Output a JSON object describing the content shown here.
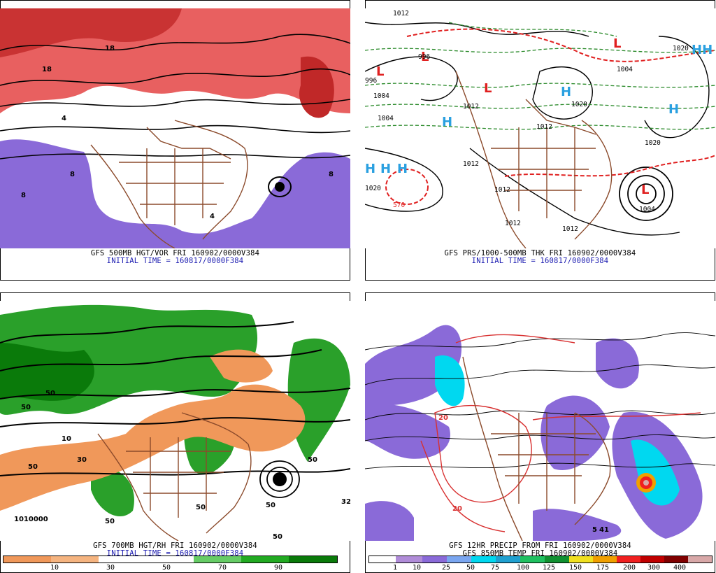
{
  "panels": [
    {
      "id": "p1",
      "caption_line1": "GFS 500MB HGT/VOR FRI 160902/0000V384",
      "caption_line2": "INITIAL TIME = 160817/0000F384"
    },
    {
      "id": "p2",
      "caption_line1": "GFS PRS/1000-500MB THK FRI 160902/0000V384",
      "caption_line2": "INITIAL TIME = 160817/0000F384"
    },
    {
      "id": "p3",
      "caption_line1": "GFS 700MB HGT/RH FRI 160902/0000V384",
      "caption_line2": "INITIAL TIME = 160817/0000F384"
    },
    {
      "id": "p4",
      "caption_line1": "GFS 12HR PRECIP FROM FRI 160902/0000V384",
      "caption_line2": "GFS 850MB TEMP FRI 160902/0000V384"
    }
  ],
  "map_labels": {
    "p1": [
      "4",
      "8",
      "8",
      "18",
      "18",
      "4",
      "8"
    ],
    "p2": [
      "1012",
      "996",
      "996",
      "1004",
      "1004",
      "1012",
      "1012",
      "1020",
      "1020",
      "1020",
      "1012",
      "1012",
      "1012",
      "1004",
      "1020",
      "570",
      "1004",
      "1012",
      "H",
      "H",
      "H",
      "H",
      "H",
      "H",
      "HH",
      "L",
      "L",
      "L",
      "L",
      "L"
    ],
    "p3": [
      "50",
      "50",
      "10",
      "50",
      "50",
      "50",
      "30",
      "1010000",
      "50",
      "50",
      "32",
      "50"
    ],
    "p4": [
      "41",
      "5",
      "20",
      "20"
    ]
  },
  "legend_rh": {
    "colors": [
      "#f0985a",
      "#f5b480",
      "#ffffff",
      "#ffffff",
      "#66cc66",
      "#22aa22",
      "#0a7a0a"
    ],
    "ticks": [
      "10",
      "30",
      "50",
      "70",
      "90"
    ]
  },
  "legend_precip": {
    "colors": [
      "#ffffff",
      "#b08cd8",
      "#8a6ad8",
      "#7aa6f0",
      "#00d8f0",
      "#20a0d0",
      "#20c060",
      "#109030",
      "#f0e020",
      "#f0a000",
      "#f02020",
      "#c00000",
      "#800000",
      "#d8a8a8"
    ],
    "ticks": [
      "1",
      "10",
      "25",
      "50",
      "75",
      "100",
      "125",
      "150",
      "175",
      "200",
      "300",
      "400"
    ]
  },
  "colors": {
    "caption_line2": "#1a1ab0",
    "coast": "#8b4a2b",
    "vorticity_hi": "#e04848",
    "vorticity_lo": "#8a6ad8",
    "high_marker": "#2aa0e0",
    "low_marker": "#e02020",
    "thickness_dash": "#e02020",
    "pressure_dash": "#2a8a2a"
  }
}
